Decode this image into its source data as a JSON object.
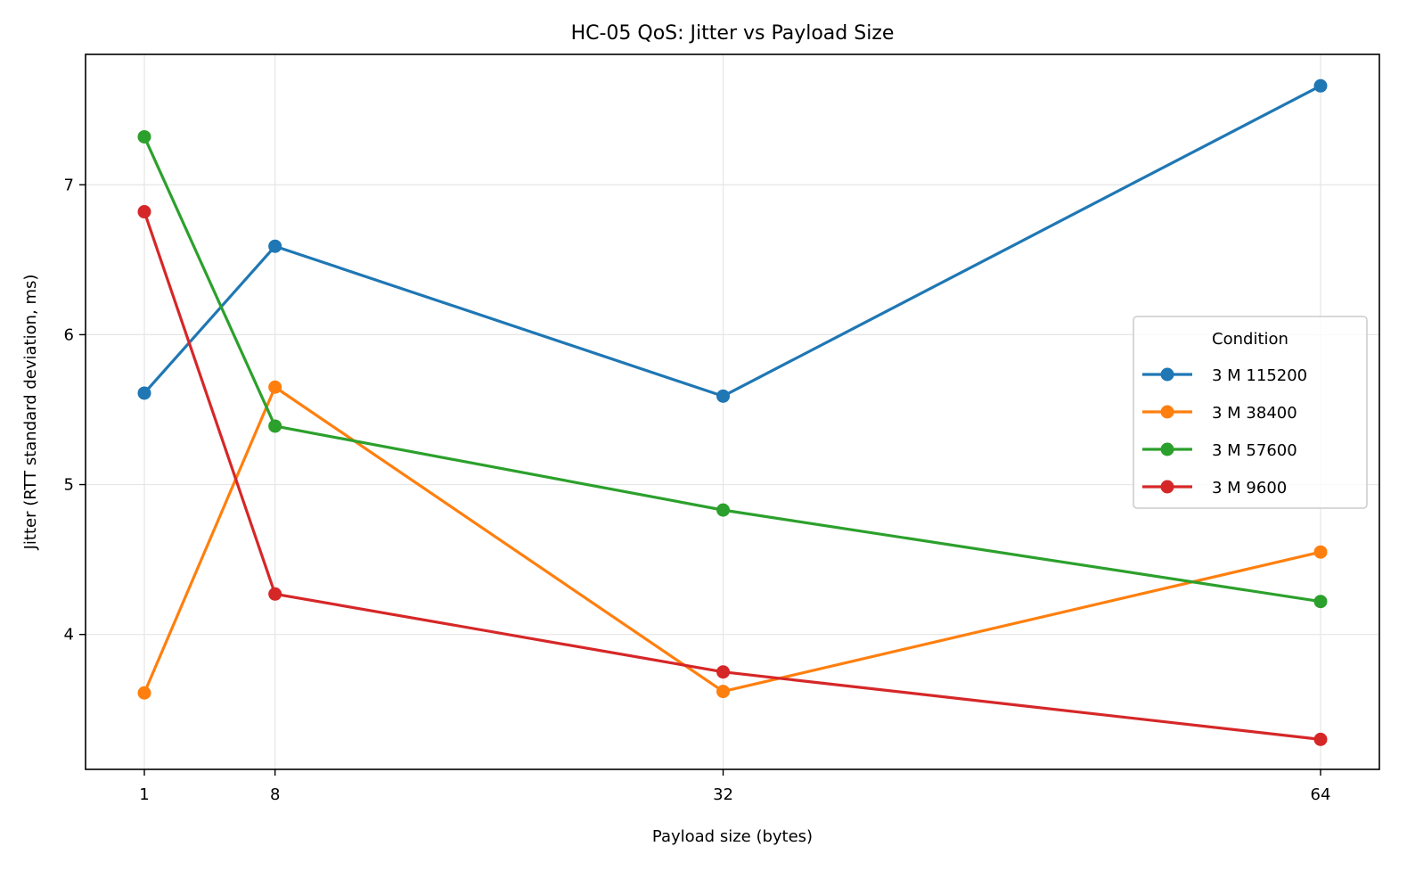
{
  "chart_data": {
    "type": "line",
    "title": "HC-05 QoS: Jitter vs Payload Size",
    "xlabel": "Payload size (bytes)",
    "ylabel": "Jitter (RTT standard deviation, ms)",
    "x": [
      1,
      8,
      32,
      64
    ],
    "xticks": [
      1,
      8,
      32,
      64
    ],
    "yticks": [
      4,
      5,
      6,
      7
    ],
    "xlim": [
      -2.15,
      67.15
    ],
    "ylim": [
      3.1,
      7.87
    ],
    "grid": true,
    "legend": {
      "title": "Condition",
      "placement": "center-right"
    },
    "series": [
      {
        "name": "3 M 115200",
        "color": "#1f77b4",
        "values": [
          5.61,
          6.59,
          5.59,
          7.66
        ]
      },
      {
        "name": "3 M 38400",
        "color": "#ff7f0e",
        "values": [
          3.61,
          5.65,
          3.62,
          4.55
        ]
      },
      {
        "name": "3 M 57600",
        "color": "#2ca02c",
        "values": [
          7.32,
          5.39,
          4.83,
          4.22
        ]
      },
      {
        "name": "3 M 9600",
        "color": "#d62728",
        "values": [
          6.82,
          4.27,
          3.75,
          3.3
        ]
      }
    ]
  }
}
